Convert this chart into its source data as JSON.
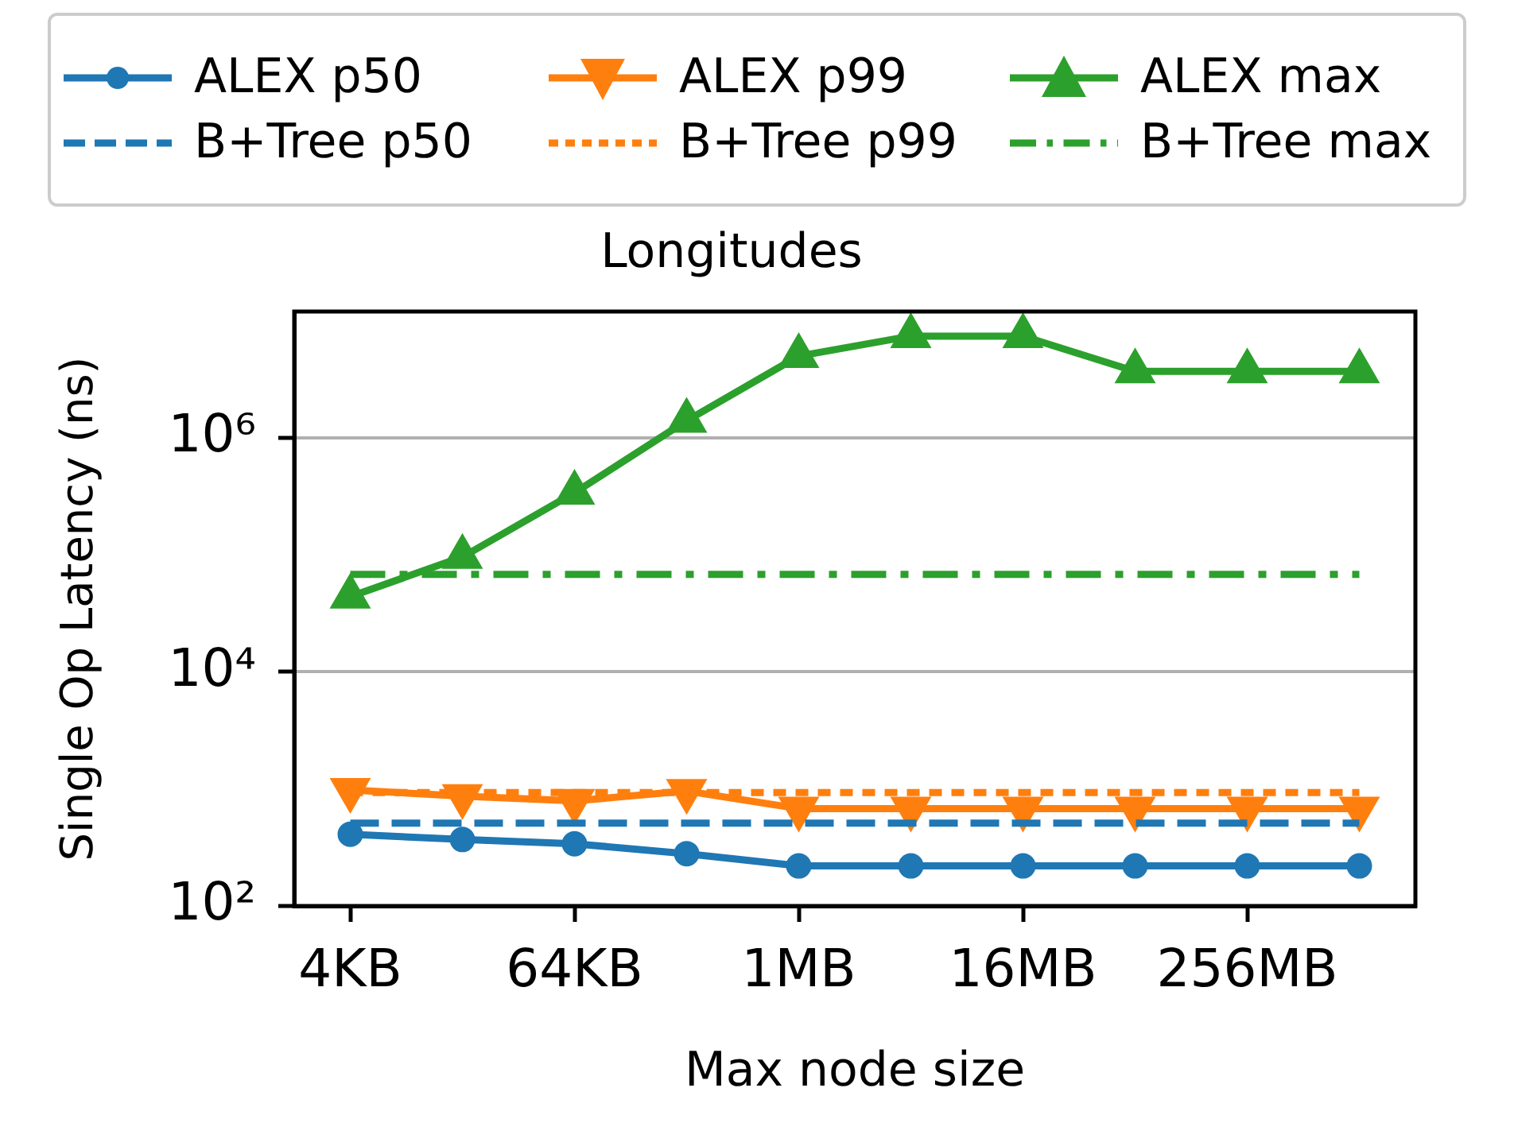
{
  "chart_data": {
    "type": "line",
    "title": "Longitudes",
    "xlabel": "Max node size",
    "ylabel": "Single Op Latency (ns)",
    "categories": [
      "4KB",
      null,
      "64KB",
      null,
      "1MB",
      null,
      "16MB",
      null,
      "256MB",
      null
    ],
    "ylim": [
      100,
      12000000
    ],
    "yticks": [
      {
        "value": 100,
        "label": "10²"
      },
      {
        "value": 10000,
        "label": "10⁴"
      },
      {
        "value": 1000000,
        "label": "10⁶"
      }
    ],
    "log": "y",
    "grid": "y",
    "legend": "top",
    "series": [
      {
        "name": "ALEX p50",
        "color": "#1f77b4",
        "marker": "circle",
        "line_style": "solid",
        "values": [
          410,
          370,
          340,
          280,
          220,
          220,
          220,
          220,
          220,
          220
        ]
      },
      {
        "name": "ALEX p99",
        "color": "#ff7f0e",
        "marker": "triangle-down",
        "line_style": "solid",
        "values": [
          980,
          870,
          790,
          960,
          680,
          680,
          680,
          680,
          680,
          680
        ]
      },
      {
        "name": "ALEX max",
        "color": "#2ca02c",
        "marker": "triangle",
        "line_style": "solid",
        "values": [
          44000,
          96000,
          340000,
          1400000,
          5000000,
          7400000,
          7400000,
          3700000,
          3700000,
          3700000
        ]
      },
      {
        "name": "B+Tree p50",
        "color": "#1f77b4",
        "marker": "none",
        "line_style": "dashed",
        "values": [
          510,
          510,
          510,
          510,
          510,
          510,
          510,
          510,
          510,
          510
        ]
      },
      {
        "name": "B+Tree p99",
        "color": "#ff7f0e",
        "marker": "none",
        "line_style": "dotted",
        "values": [
          930,
          930,
          930,
          930,
          930,
          930,
          930,
          930,
          930,
          930
        ]
      },
      {
        "name": "B+Tree max",
        "color": "#2ca02c",
        "marker": "none",
        "line_style": "dashdot",
        "values": [
          68000,
          68000,
          68000,
          68000,
          68000,
          68000,
          68000,
          68000,
          68000,
          68000
        ]
      }
    ]
  }
}
